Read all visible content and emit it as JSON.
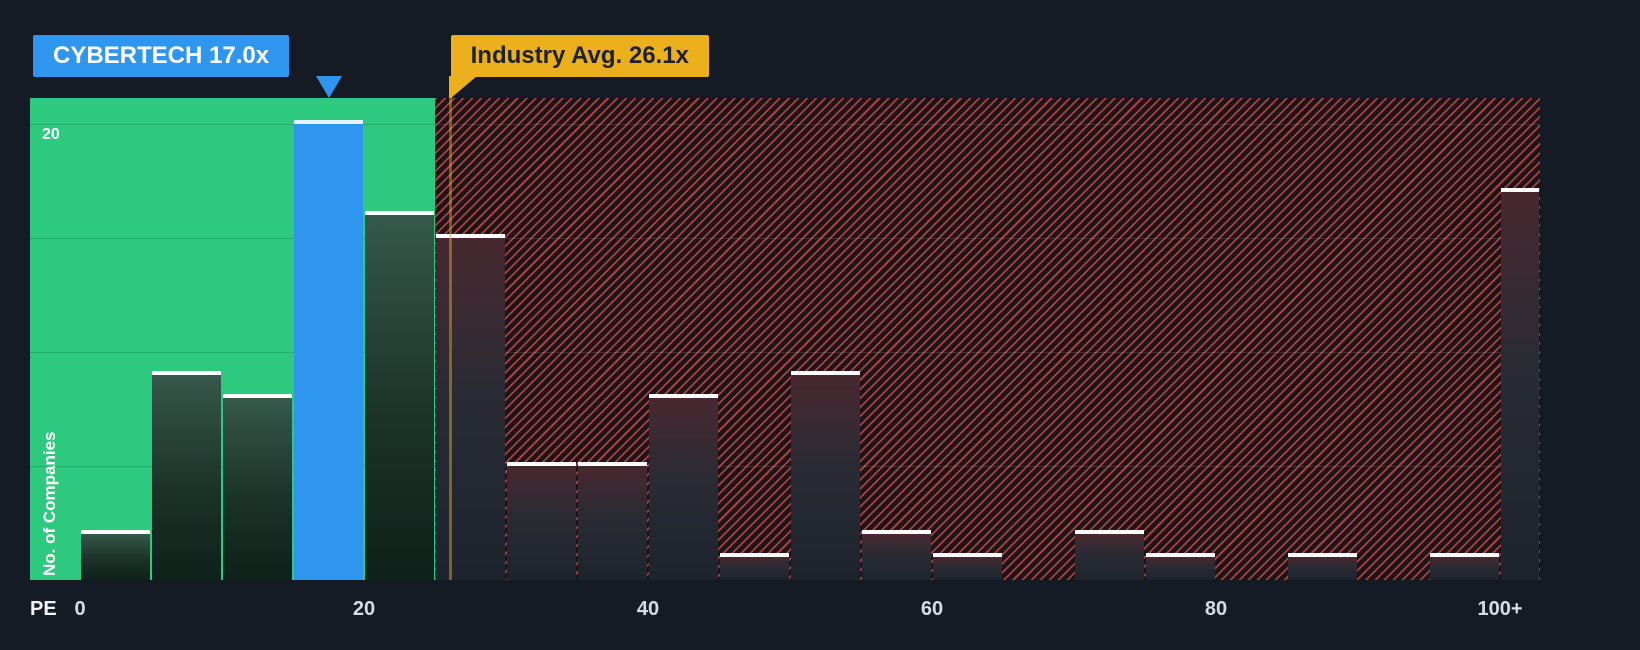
{
  "chart_data": {
    "type": "bar",
    "xlabel": "PE",
    "ylabel": "No. of Companies",
    "x_ticks": [
      "0",
      "20",
      "40",
      "60",
      "80",
      "100+"
    ],
    "x_tick_values": [
      0,
      20,
      40,
      60,
      80,
      100
    ],
    "y_ticks": [
      {
        "value": 20,
        "label": "20"
      }
    ],
    "gridline_values": [
      5,
      10,
      15,
      20
    ],
    "xlim": [
      -3.5,
      102.8
    ],
    "ylim": [
      0,
      21
    ],
    "bin_width": 5,
    "bins": [
      {
        "x0": 0,
        "x1": 5,
        "count": 2
      },
      {
        "x0": 5,
        "x1": 10,
        "count": 9
      },
      {
        "x0": 10,
        "x1": 15,
        "count": 8
      },
      {
        "x0": 15,
        "x1": 20,
        "count": 20,
        "highlight": "company"
      },
      {
        "x0": 20,
        "x1": 25,
        "count": 16
      },
      {
        "x0": 25,
        "x1": 30,
        "count": 15
      },
      {
        "x0": 30,
        "x1": 35,
        "count": 5
      },
      {
        "x0": 35,
        "x1": 40,
        "count": 5
      },
      {
        "x0": 40,
        "x1": 45,
        "count": 8
      },
      {
        "x0": 45,
        "x1": 50,
        "count": 1
      },
      {
        "x0": 50,
        "x1": 55,
        "count": 9
      },
      {
        "x0": 55,
        "x1": 60,
        "count": 2
      },
      {
        "x0": 60,
        "x1": 65,
        "count": 1
      },
      {
        "x0": 65,
        "x1": 70,
        "count": 0
      },
      {
        "x0": 70,
        "x1": 75,
        "count": 2
      },
      {
        "x0": 75,
        "x1": 80,
        "count": 1
      },
      {
        "x0": 80,
        "x1": 85,
        "count": 0
      },
      {
        "x0": 85,
        "x1": 90,
        "count": 1
      },
      {
        "x0": 90,
        "x1": 95,
        "count": 0
      },
      {
        "x0": 95,
        "x1": 100,
        "count": 1
      },
      {
        "x0": 100,
        "x1": 102.8,
        "count": 17,
        "overflow": true
      }
    ],
    "company_marker": {
      "label": "CYBERTECH 17.0x",
      "value": 17.0,
      "bin_start": 15,
      "bin_end": 20,
      "color": "#2e96ee"
    },
    "industry_marker": {
      "label": "Industry Avg. 26.1x",
      "value": 26.1,
      "color": "#ecb01c"
    },
    "zones": {
      "undervalued": {
        "x_start": -3.5,
        "x_end": 25,
        "color": "#2dc97e"
      },
      "overvalued": {
        "x_start": 25,
        "x_end": 102.8,
        "hatch_color": "#e25246",
        "base_color": "#1c141a"
      }
    },
    "bar_cap_color": "#ffffff",
    "background_color": "#151b24"
  }
}
